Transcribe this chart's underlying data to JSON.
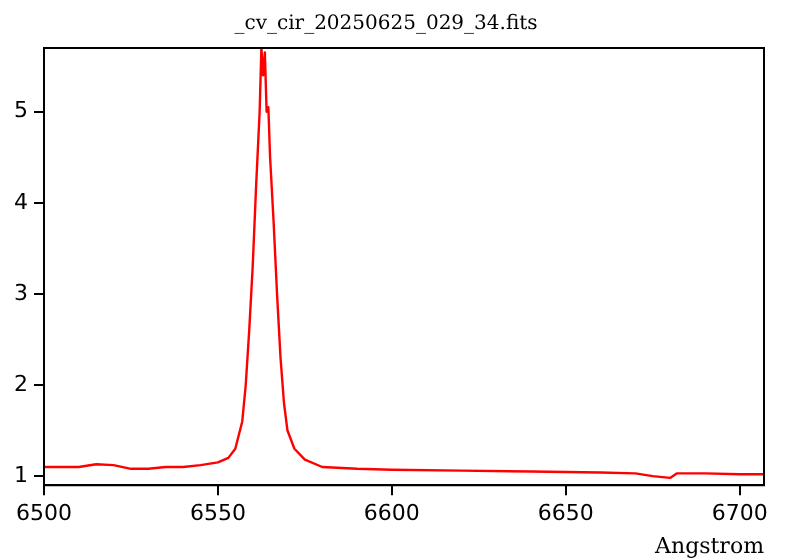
{
  "chart_data": {
    "type": "line",
    "title": "_cv_cir_20250625_029_34.fits",
    "xlabel": "Angstrom",
    "x": [
      6500,
      6505,
      6510,
      6515,
      6520,
      6525,
      6530,
      6535,
      6540,
      6545,
      6550,
      6553,
      6555,
      6557,
      6558,
      6559,
      6560,
      6561,
      6562,
      6562.5,
      6563,
      6563.5,
      6564,
      6564.5,
      6565,
      6566,
      6567,
      6568,
      6569,
      6570,
      6572,
      6575,
      6580,
      6590,
      6600,
      6620,
      6640,
      6660,
      6670,
      6675,
      6680,
      6682,
      6690,
      6700,
      6707
    ],
    "series": [
      {
        "color": "#ff0000",
        "values": [
          1.1,
          1.1,
          1.1,
          1.13,
          1.12,
          1.08,
          1.08,
          1.1,
          1.1,
          1.12,
          1.15,
          1.2,
          1.3,
          1.6,
          2.0,
          2.6,
          3.3,
          4.2,
          5.0,
          5.7,
          5.4,
          5.65,
          5.0,
          5.05,
          4.5,
          3.8,
          3.0,
          2.3,
          1.8,
          1.5,
          1.3,
          1.18,
          1.1,
          1.08,
          1.07,
          1.06,
          1.05,
          1.04,
          1.03,
          1.0,
          0.98,
          1.03,
          1.03,
          1.02,
          1.02
        ]
      }
    ],
    "xlim": [
      6500,
      6707
    ],
    "xticks": [
      6500,
      6550,
      6600,
      6650,
      6700
    ],
    "ylim": [
      0.9,
      5.7
    ],
    "yticks": [
      1,
      2,
      3,
      4,
      5
    ],
    "grid": false,
    "legend": false,
    "marker": "none",
    "line_style": "solid"
  }
}
